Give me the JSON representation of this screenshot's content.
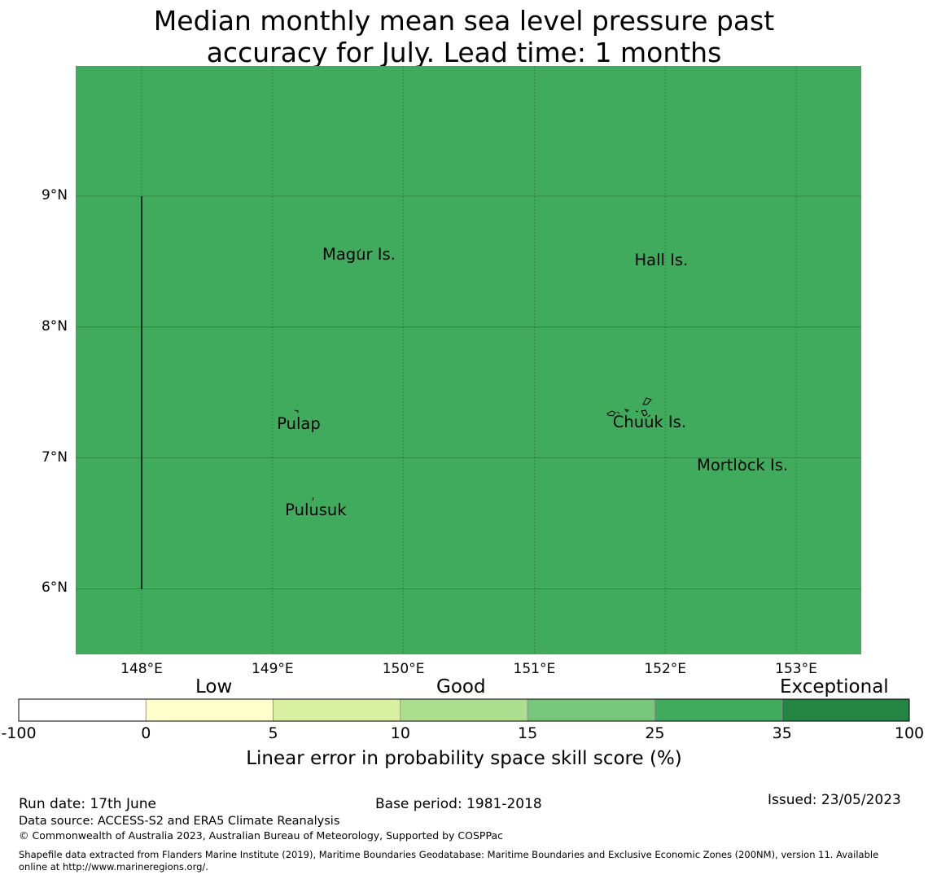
{
  "title_line1": "Median monthly mean sea level pressure past",
  "title_line2": "accuracy for July. Lead time: 1 months",
  "map": {
    "background_color": "#41ab5d",
    "lon_ticks": [
      "148°E",
      "149°E",
      "150°E",
      "151°E",
      "152°E",
      "153°E"
    ],
    "lat_ticks": [
      "9°N",
      "8°N",
      "7°N",
      "6°N"
    ],
    "places": [
      {
        "name": "Magur Is.",
        "lon": 149.66,
        "lat": 8.55
      },
      {
        "name": "Hall Is.",
        "lon": 151.97,
        "lat": 8.51
      },
      {
        "name": "Pulap",
        "lon": 149.2,
        "lat": 7.26
      },
      {
        "name": "Chuuk Is.",
        "lon": 151.88,
        "lat": 7.27
      },
      {
        "name": "Mortlock Is.",
        "lon": 152.59,
        "lat": 6.94
      },
      {
        "name": "Pulusuk",
        "lon": 149.33,
        "lat": 6.6
      }
    ]
  },
  "colorbar": {
    "categories": [
      "Low",
      "Good",
      "Exceptional"
    ],
    "ticks": [
      "-100",
      "0",
      "5",
      "10",
      "15",
      "25",
      "35",
      "100"
    ],
    "colors": [
      "#ffffff",
      "#ffffcc",
      "#d9f0a3",
      "#addd8e",
      "#78c679",
      "#41ab5d",
      "#238443"
    ],
    "title": "Linear error in probability space skill score (%)"
  },
  "footer": {
    "run_date": "Run date: 17th June",
    "base_period": "Base period: 1981-2018",
    "issued": "Issued: 23/05/2023",
    "data_source": "Data source: ACCESS-S2 and ERA5 Climate Reanalysis",
    "copyright": "© Commonwealth of Australia 2023, Australian Bureau of Meteorology, Supported by COSPPac",
    "shapefile_line1": "Shapefile data extracted from Flanders Marine Institute (2019), Maritime Boundaries Geodatabase: Maritime Boundaries and Exclusive Economic Zones (200NM), version 11. Available",
    "shapefile_line2": "online at http://www.marineregions.org/."
  }
}
